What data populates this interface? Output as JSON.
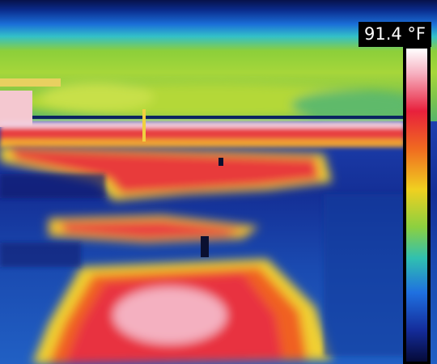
{
  "temperature_label": "91.4 °F"
}
